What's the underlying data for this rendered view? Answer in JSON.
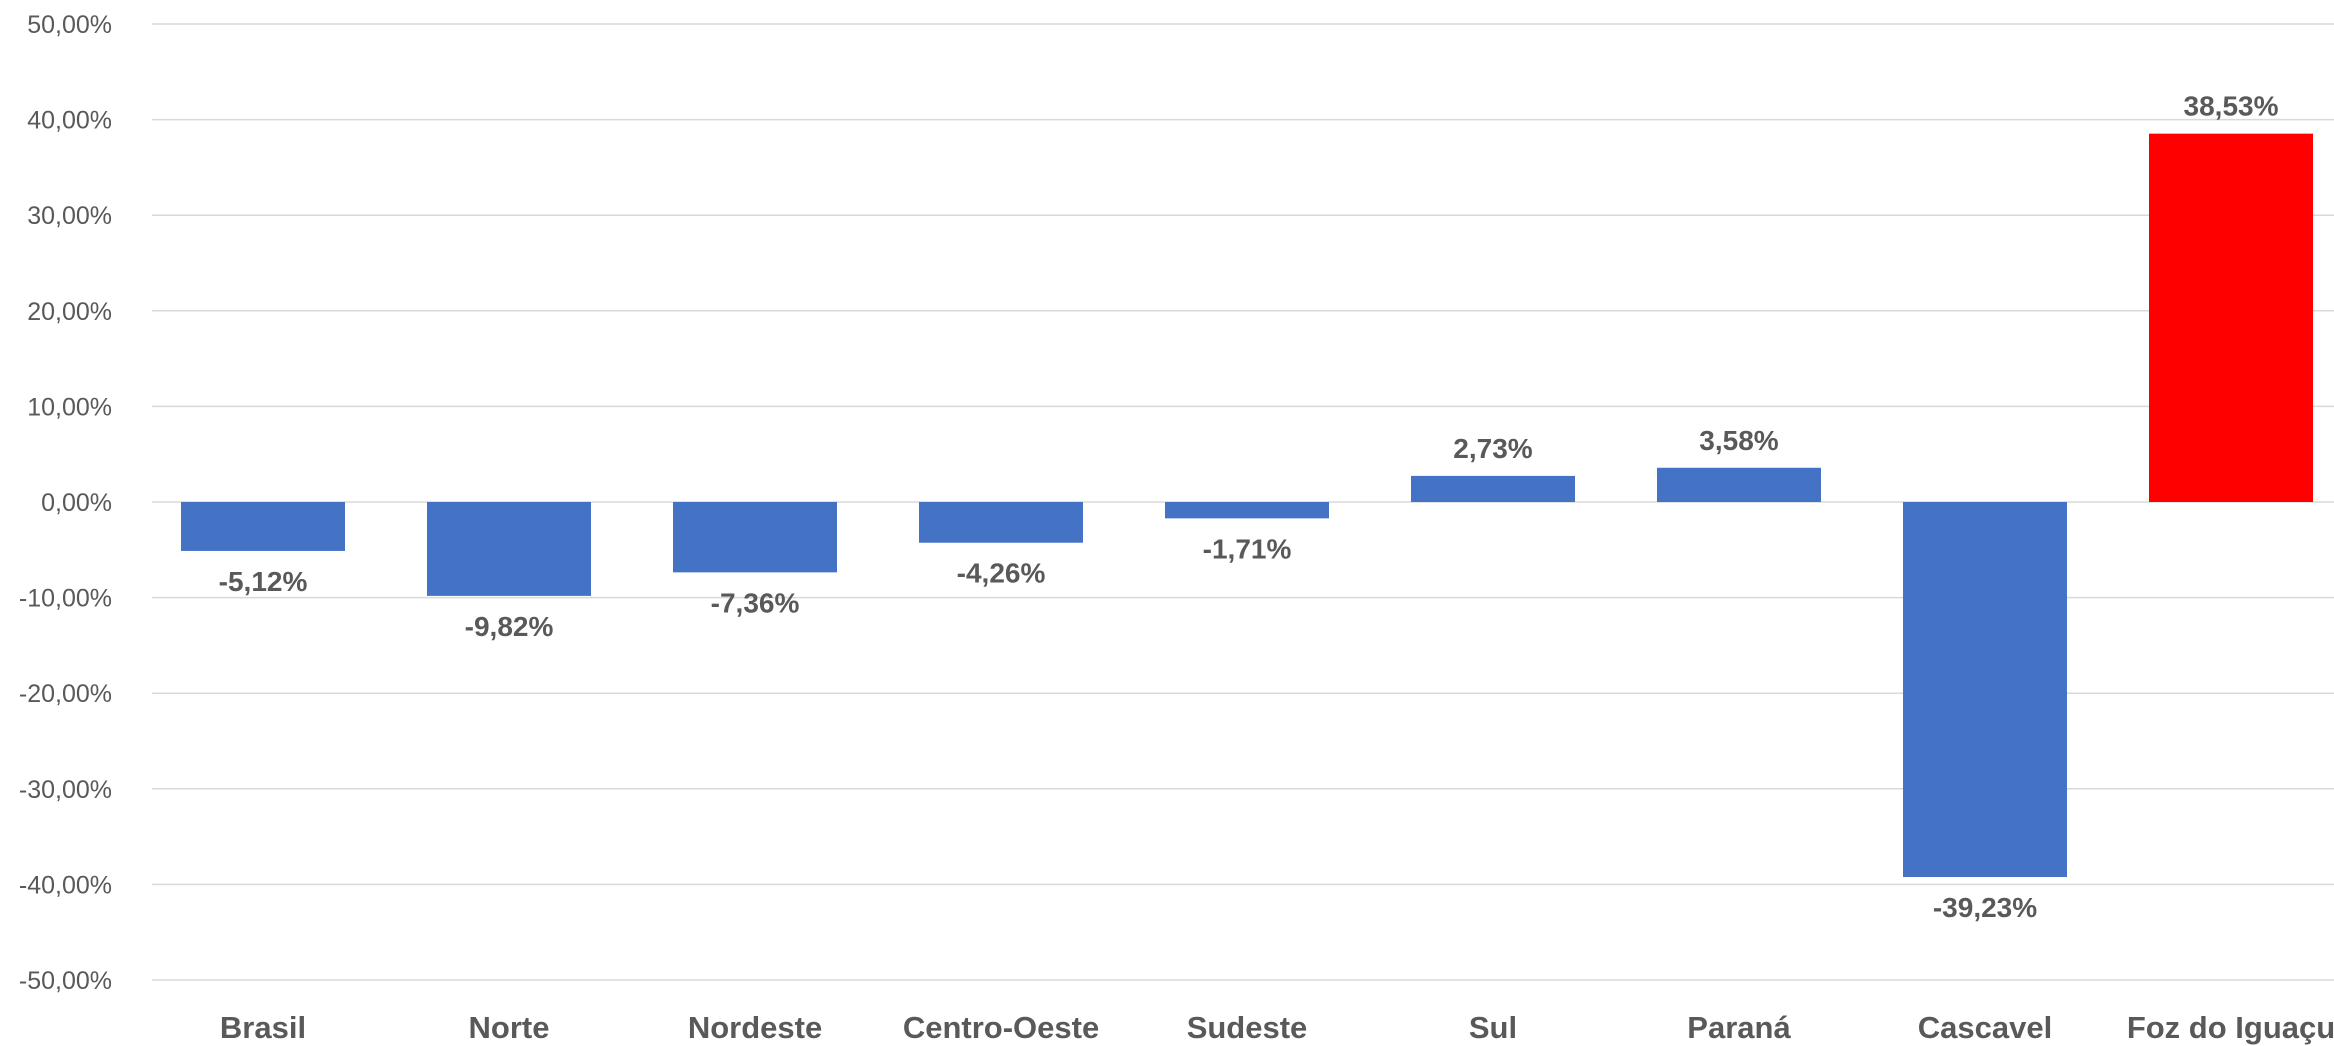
{
  "chart_data": {
    "type": "bar",
    "categories": [
      "Brasil",
      "Norte",
      "Nordeste",
      "Centro-Oeste",
      "Sudeste",
      "Sul",
      "Paraná",
      "Cascavel",
      "Foz do Iguaçu"
    ],
    "values": [
      -5.12,
      -9.82,
      -7.36,
      -4.26,
      -1.71,
      2.73,
      3.58,
      -39.23,
      38.53
    ],
    "data_labels": [
      "-5,12%",
      "-9,82%",
      "-7,36%",
      "-4,26%",
      "-1,71%",
      "2,73%",
      "3,58%",
      "-39,23%",
      "38,53%"
    ],
    "colors": [
      "#4472c4",
      "#4472c4",
      "#4472c4",
      "#4472c4",
      "#4472c4",
      "#4472c4",
      "#4472c4",
      "#4472c4",
      "#ff0000"
    ],
    "ylim": [
      -50,
      50
    ],
    "yticks": [
      50,
      40,
      30,
      20,
      10,
      0,
      -10,
      -20,
      -30,
      -40,
      -50
    ],
    "ytick_labels": [
      "50,00%",
      "40,00%",
      "30,00%",
      "20,00%",
      "10,00%",
      "0,00%",
      "-10,00%",
      "-20,00%",
      "-30,00%",
      "-40,00%",
      "-50,00%"
    ],
    "grid": true,
    "legend": "none",
    "title": "",
    "xlabel": "",
    "ylabel": ""
  }
}
